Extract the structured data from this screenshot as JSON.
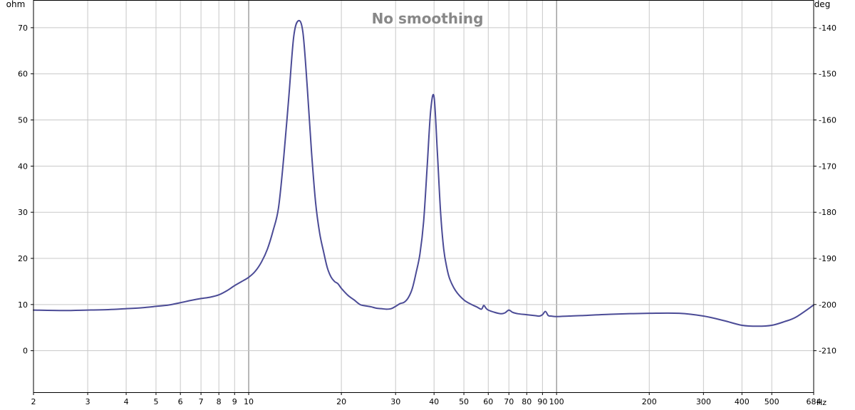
{
  "colors": {
    "background": "#ffffff",
    "plot_border": "#000000",
    "grid_minor": "#c8c8c8",
    "grid_major": "#707070",
    "curve": "#4b4b96",
    "title": "#888888",
    "text": "#000000"
  },
  "chart_data": {
    "type": "line",
    "title": "No smoothing",
    "xlabel": "",
    "ylabel": "",
    "left_axis_unit": "ohm",
    "right_axis_unit": "deg",
    "x_unit": "Hz",
    "x_scale": "log",
    "xlim": [
      2,
      684
    ],
    "ylim": [
      -9,
      76
    ],
    "y2lim": [
      -219,
      -134
    ],
    "grid": true,
    "legend": "none",
    "x_ticks": [
      2,
      3,
      4,
      5,
      6,
      7,
      8,
      9,
      10,
      20,
      30,
      40,
      50,
      60,
      70,
      80,
      90,
      100,
      200,
      300,
      400,
      500,
      684
    ],
    "x_tick_labels": [
      "2",
      "3",
      "4",
      "5",
      "6",
      "7",
      "8",
      "9",
      "10",
      "20",
      "30",
      "40",
      "50",
      "60",
      "70",
      "80",
      "90",
      "100",
      "200",
      "300",
      "400",
      "500",
      "684"
    ],
    "x_major_lines": [
      10,
      100
    ],
    "y_ticks": [
      0,
      10,
      20,
      30,
      40,
      50,
      60,
      70
    ],
    "y_tick_labels": [
      "0",
      "10",
      "20",
      "30",
      "40",
      "50",
      "60",
      "70"
    ],
    "y2_ticks": [
      -210,
      -200,
      -190,
      -180,
      -170,
      -160,
      -150,
      -140
    ],
    "y2_tick_labels": [
      "-210",
      "-200",
      "-190",
      "-180",
      "-170",
      "-160",
      "-150",
      "-140"
    ],
    "series": [
      {
        "x": [
          2,
          2.5,
          3,
          3.5,
          4,
          4.5,
          5,
          5.5,
          6,
          6.5,
          7,
          7.5,
          8,
          8.5,
          9,
          9.5,
          10,
          10.5,
          11,
          11.5,
          12,
          12.5,
          13,
          13.5,
          14,
          14.5,
          15,
          15.5,
          16,
          16.5,
          17,
          17.5,
          18,
          18.5,
          19,
          19.5,
          20,
          21,
          22,
          23,
          24,
          25,
          26,
          27,
          28,
          29,
          30,
          31,
          32,
          33,
          34,
          35,
          36,
          37,
          38,
          39,
          40,
          41,
          42,
          43,
          44,
          45,
          47,
          50,
          53,
          55,
          57,
          58,
          59,
          60,
          63,
          66,
          68,
          70,
          72,
          75,
          80,
          85,
          88,
          90,
          92,
          94,
          96,
          100,
          110,
          120,
          150,
          200,
          250,
          300,
          350,
          400,
          450,
          500,
          550,
          600,
          684
        ],
        "y": [
          8.8,
          8.7,
          8.8,
          8.9,
          9.1,
          9.3,
          9.6,
          9.9,
          10.4,
          10.9,
          11.3,
          11.6,
          12.1,
          13.0,
          14.1,
          15.0,
          15.9,
          17.2,
          19.2,
          22.0,
          26.0,
          31.0,
          42.0,
          55.0,
          68.0,
          71.5,
          69.0,
          57.0,
          43.0,
          32.0,
          25.5,
          21.5,
          18.0,
          16.0,
          15.0,
          14.5,
          13.5,
          12.0,
          11.0,
          10.0,
          9.7,
          9.5,
          9.2,
          9.1,
          9.0,
          9.1,
          9.6,
          10.2,
          10.5,
          11.5,
          13.5,
          17.0,
          21.0,
          28.0,
          40.0,
          52.0,
          55.0,
          43.0,
          30.0,
          22.0,
          18.0,
          15.5,
          13.0,
          11.0,
          10.0,
          9.5,
          9.0,
          9.8,
          9.2,
          8.8,
          8.3,
          8.0,
          8.2,
          8.8,
          8.3,
          8.0,
          7.8,
          7.6,
          7.5,
          7.8,
          8.5,
          7.6,
          7.5,
          7.4,
          7.5,
          7.6,
          7.9,
          8.1,
          8.1,
          7.5,
          6.5,
          5.5,
          5.3,
          5.5,
          6.3,
          7.3,
          9.9
        ]
      }
    ]
  }
}
